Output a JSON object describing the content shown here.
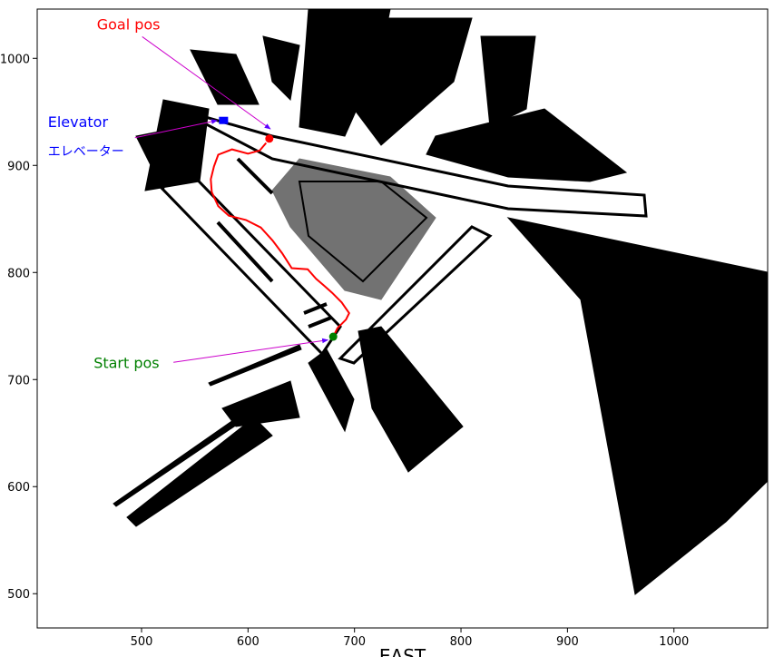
{
  "chart_data": {
    "type": "scatter",
    "title": "",
    "xlabel": "EAST",
    "ylabel": "",
    "xlim": [
      402,
      1088
    ],
    "ylim": [
      468,
      1046
    ],
    "xticks": [
      500,
      600,
      700,
      800,
      900,
      1000
    ],
    "yticks": [
      500,
      600,
      700,
      800,
      900,
      1000
    ],
    "grid": false,
    "series": [
      {
        "role": "path",
        "color": "#ff0000",
        "points": [
          [
            680,
            740
          ],
          [
            684,
            748
          ],
          [
            692,
            756
          ],
          [
            695,
            762
          ],
          [
            688,
            772
          ],
          [
            679,
            781
          ],
          [
            671,
            788
          ],
          [
            664,
            794
          ],
          [
            656,
            803
          ],
          [
            641,
            804
          ],
          [
            632,
            818
          ],
          [
            623,
            830
          ],
          [
            612,
            842
          ],
          [
            598,
            849
          ],
          [
            582,
            853
          ],
          [
            572,
            862
          ],
          [
            566,
            875
          ],
          [
            565,
            887
          ],
          [
            568,
            899
          ],
          [
            572,
            910
          ],
          [
            585,
            915
          ],
          [
            600,
            911
          ],
          [
            611,
            914
          ],
          [
            617,
            921
          ]
        ]
      },
      {
        "role": "start-marker",
        "color": "#008000",
        "point": [
          680,
          740
        ]
      },
      {
        "role": "goal-marker",
        "color": "#ff0000",
        "point": [
          620,
          925
        ]
      },
      {
        "role": "elevator-marker",
        "color": "#0000ff",
        "point": [
          577,
          942
        ]
      }
    ],
    "annotations": [
      {
        "text": "Goal pos",
        "color": "#ff0000",
        "x": 458,
        "y": 1027,
        "arrow_to": [
          621,
          934
        ]
      },
      {
        "text": "Elevator",
        "color": "#0000ff",
        "x": 412,
        "y": 936,
        "arrow_to": [
          571,
          942
        ]
      },
      {
        "text": "エレベーター",
        "color": "#0000ff",
        "x": 412,
        "y": 909,
        "arrow_to": null
      },
      {
        "text": "Start pos",
        "color": "#008000",
        "x": 455,
        "y": 711,
        "arrow_to": [
          675,
          737
        ]
      }
    ],
    "arrow_color": "#cc00cc"
  }
}
